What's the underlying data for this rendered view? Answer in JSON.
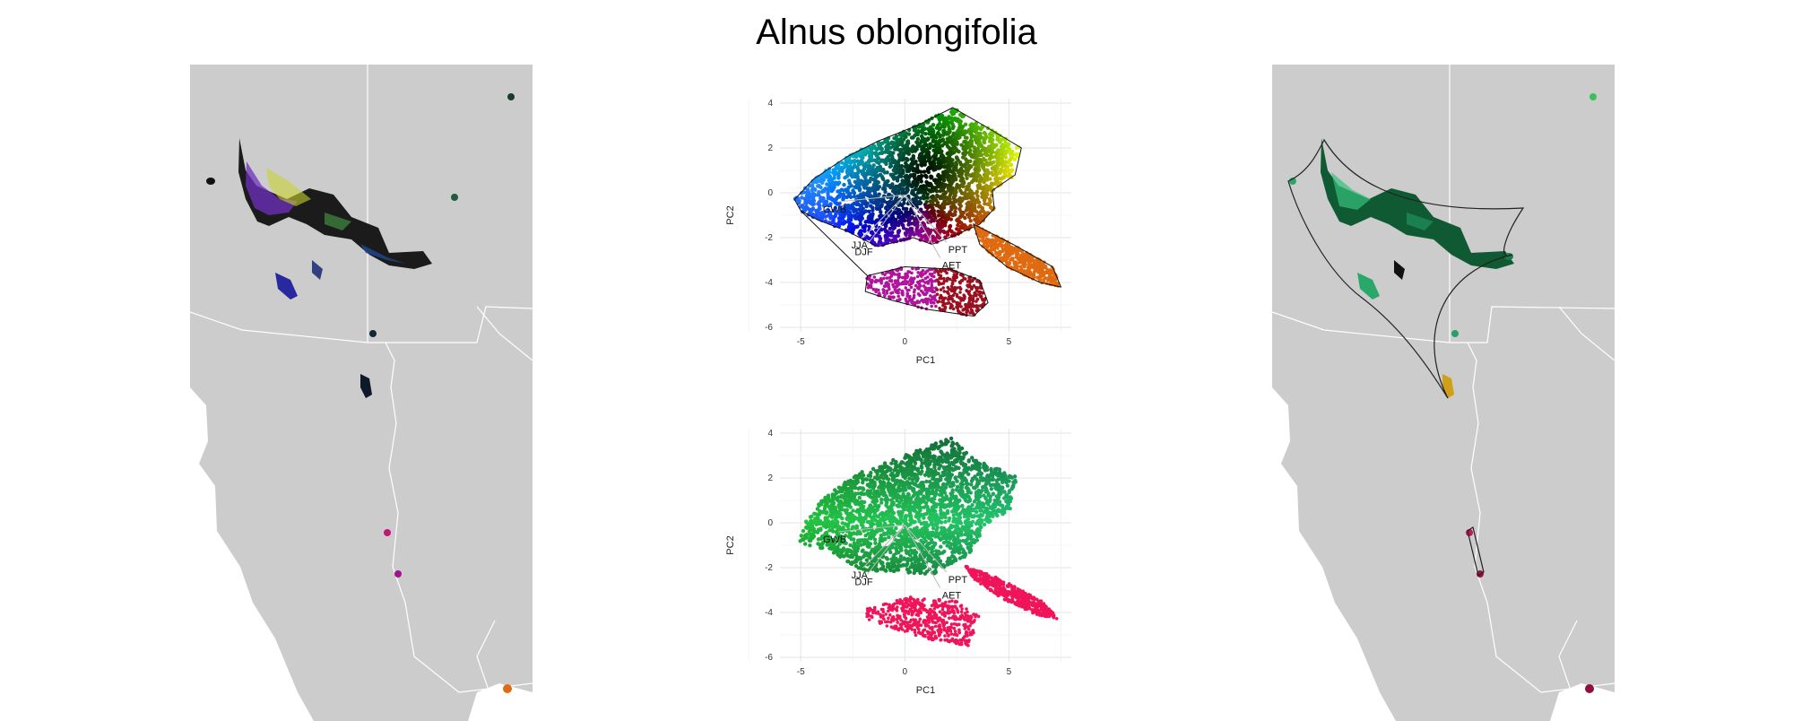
{
  "title": "Alnus oblongifolia",
  "colors": {
    "map_land": "#cccccc",
    "map_border": "#ffffff",
    "background": "#ffffff",
    "grid": "#e6e6e6",
    "orange_cluster": "#e06a10",
    "magenta_cluster": "#b0149c",
    "pink_cluster": "#f0145a",
    "green_cluster": "#1ea064"
  },
  "panels": {
    "left_map": {
      "name": "range map colored by climate (rainbow)"
    },
    "right_map": {
      "name": "range map colored by climate (green/pink)"
    }
  },
  "chart_data": [
    {
      "type": "scatter",
      "panel": "pca-top",
      "xlabel": "PC1",
      "ylabel": "PC2",
      "xlim": [
        -6,
        8
      ],
      "ylim": [
        -6.2,
        4.2
      ],
      "xticks": [
        -5,
        0,
        5
      ],
      "yticks": [
        -6,
        -4,
        -2,
        0,
        2,
        4
      ],
      "grid": true,
      "series": [
        {
          "color": "rainbow gradient",
          "hull": [
            [
              -5.3,
              -0.3
            ],
            [
              -4.4,
              0.6
            ],
            [
              -2.8,
              1.6
            ],
            [
              -1.3,
              2.3
            ],
            [
              0.6,
              3.0
            ],
            [
              2.3,
              3.8
            ],
            [
              3.8,
              3.0
            ],
            [
              5.6,
              2.0
            ],
            [
              5.3,
              0.8
            ],
            [
              4.2,
              0.1
            ],
            [
              4.3,
              -0.7
            ],
            [
              3.6,
              -1.4
            ],
            [
              2.4,
              -1.9
            ],
            [
              1.3,
              -2.3
            ],
            [
              0.4,
              -2.0
            ],
            [
              -1.3,
              -2.4
            ],
            [
              -2.8,
              -1.7
            ],
            [
              -4.2,
              -1.2
            ],
            [
              -5.0,
              -0.8
            ]
          ]
        },
        {
          "color": "#e06a10",
          "hull": [
            [
              3.3,
              -1.4
            ],
            [
              5.2,
              -2.3
            ],
            [
              7.1,
              -3.3
            ],
            [
              7.5,
              -4.2
            ],
            [
              6.5,
              -4.0
            ],
            [
              4.9,
              -3.3
            ],
            [
              3.6,
              -2.3
            ]
          ]
        },
        {
          "color": "#b0149c",
          "hull": [
            [
              -1.8,
              -3.7
            ],
            [
              0.0,
              -3.3
            ],
            [
              2.2,
              -3.4
            ],
            [
              3.6,
              -3.9
            ],
            [
              4.0,
              -4.9
            ],
            [
              3.3,
              -5.5
            ],
            [
              1.1,
              -5.2
            ],
            [
              -0.6,
              -4.8
            ],
            [
              -1.9,
              -4.4
            ]
          ]
        }
      ],
      "arrows": [
        {
          "label": "GWB",
          "end": [
            -3.2,
            -0.4
          ]
        },
        {
          "label": "JJA",
          "end": [
            -2.0,
            -2.0
          ]
        },
        {
          "label": "DJF",
          "end": [
            -1.8,
            -2.3
          ]
        },
        {
          "label": "PPT",
          "end": [
            2.0,
            -2.2
          ]
        },
        {
          "label": "AET",
          "end": [
            1.7,
            -2.9
          ]
        }
      ]
    },
    {
      "type": "scatter",
      "panel": "pca-bottom",
      "xlabel": "PC1",
      "ylabel": "PC2",
      "xlim": [
        -6,
        8
      ],
      "ylim": [
        -6.2,
        4.2
      ],
      "xticks": [
        -5,
        0,
        5
      ],
      "yticks": [
        -6,
        -4,
        -2,
        0,
        2,
        4
      ],
      "grid": true,
      "series": [
        {
          "color": "green gradient",
          "hull": [
            [
              -4.8,
              0.0
            ],
            [
              -4.0,
              1.0
            ],
            [
              -2.5,
              2.1
            ],
            [
              -1.2,
              2.6
            ],
            [
              0.8,
              3.3
            ],
            [
              2.2,
              3.8
            ],
            [
              3.4,
              2.8
            ],
            [
              5.4,
              2.1
            ],
            [
              5.1,
              0.6
            ],
            [
              3.9,
              -0.1
            ],
            [
              3.1,
              -1.4
            ],
            [
              1.4,
              -2.3
            ],
            [
              -0.5,
              -2.2
            ],
            [
              -2.1,
              -2.1
            ],
            [
              -3.7,
              -1.2
            ],
            [
              -5.1,
              -0.9
            ]
          ]
        },
        {
          "color": "#f0145a",
          "hull": [
            [
              2.9,
              -1.9
            ],
            [
              4.6,
              -2.5
            ],
            [
              6.6,
              -3.5
            ],
            [
              7.4,
              -4.3
            ],
            [
              6.3,
              -4.1
            ],
            [
              4.7,
              -3.4
            ],
            [
              3.3,
              -2.5
            ]
          ]
        },
        {
          "color": "#f0145a",
          "hull": [
            [
              -1.8,
              -3.8
            ],
            [
              0.3,
              -3.3
            ],
            [
              2.5,
              -3.5
            ],
            [
              3.6,
              -4.2
            ],
            [
              3.1,
              -5.5
            ],
            [
              1.2,
              -5.2
            ],
            [
              -0.6,
              -4.7
            ],
            [
              -1.9,
              -4.3
            ]
          ]
        }
      ],
      "arrows": [
        {
          "label": "GWB",
          "end": [
            -3.2,
            -0.4
          ]
        },
        {
          "label": "JJA",
          "end": [
            -2.0,
            -2.0
          ]
        },
        {
          "label": "DJF",
          "end": [
            -1.8,
            -2.3
          ]
        },
        {
          "label": "PPT",
          "end": [
            2.0,
            -2.2
          ]
        },
        {
          "label": "AET",
          "end": [
            1.7,
            -2.9
          ]
        }
      ]
    }
  ]
}
